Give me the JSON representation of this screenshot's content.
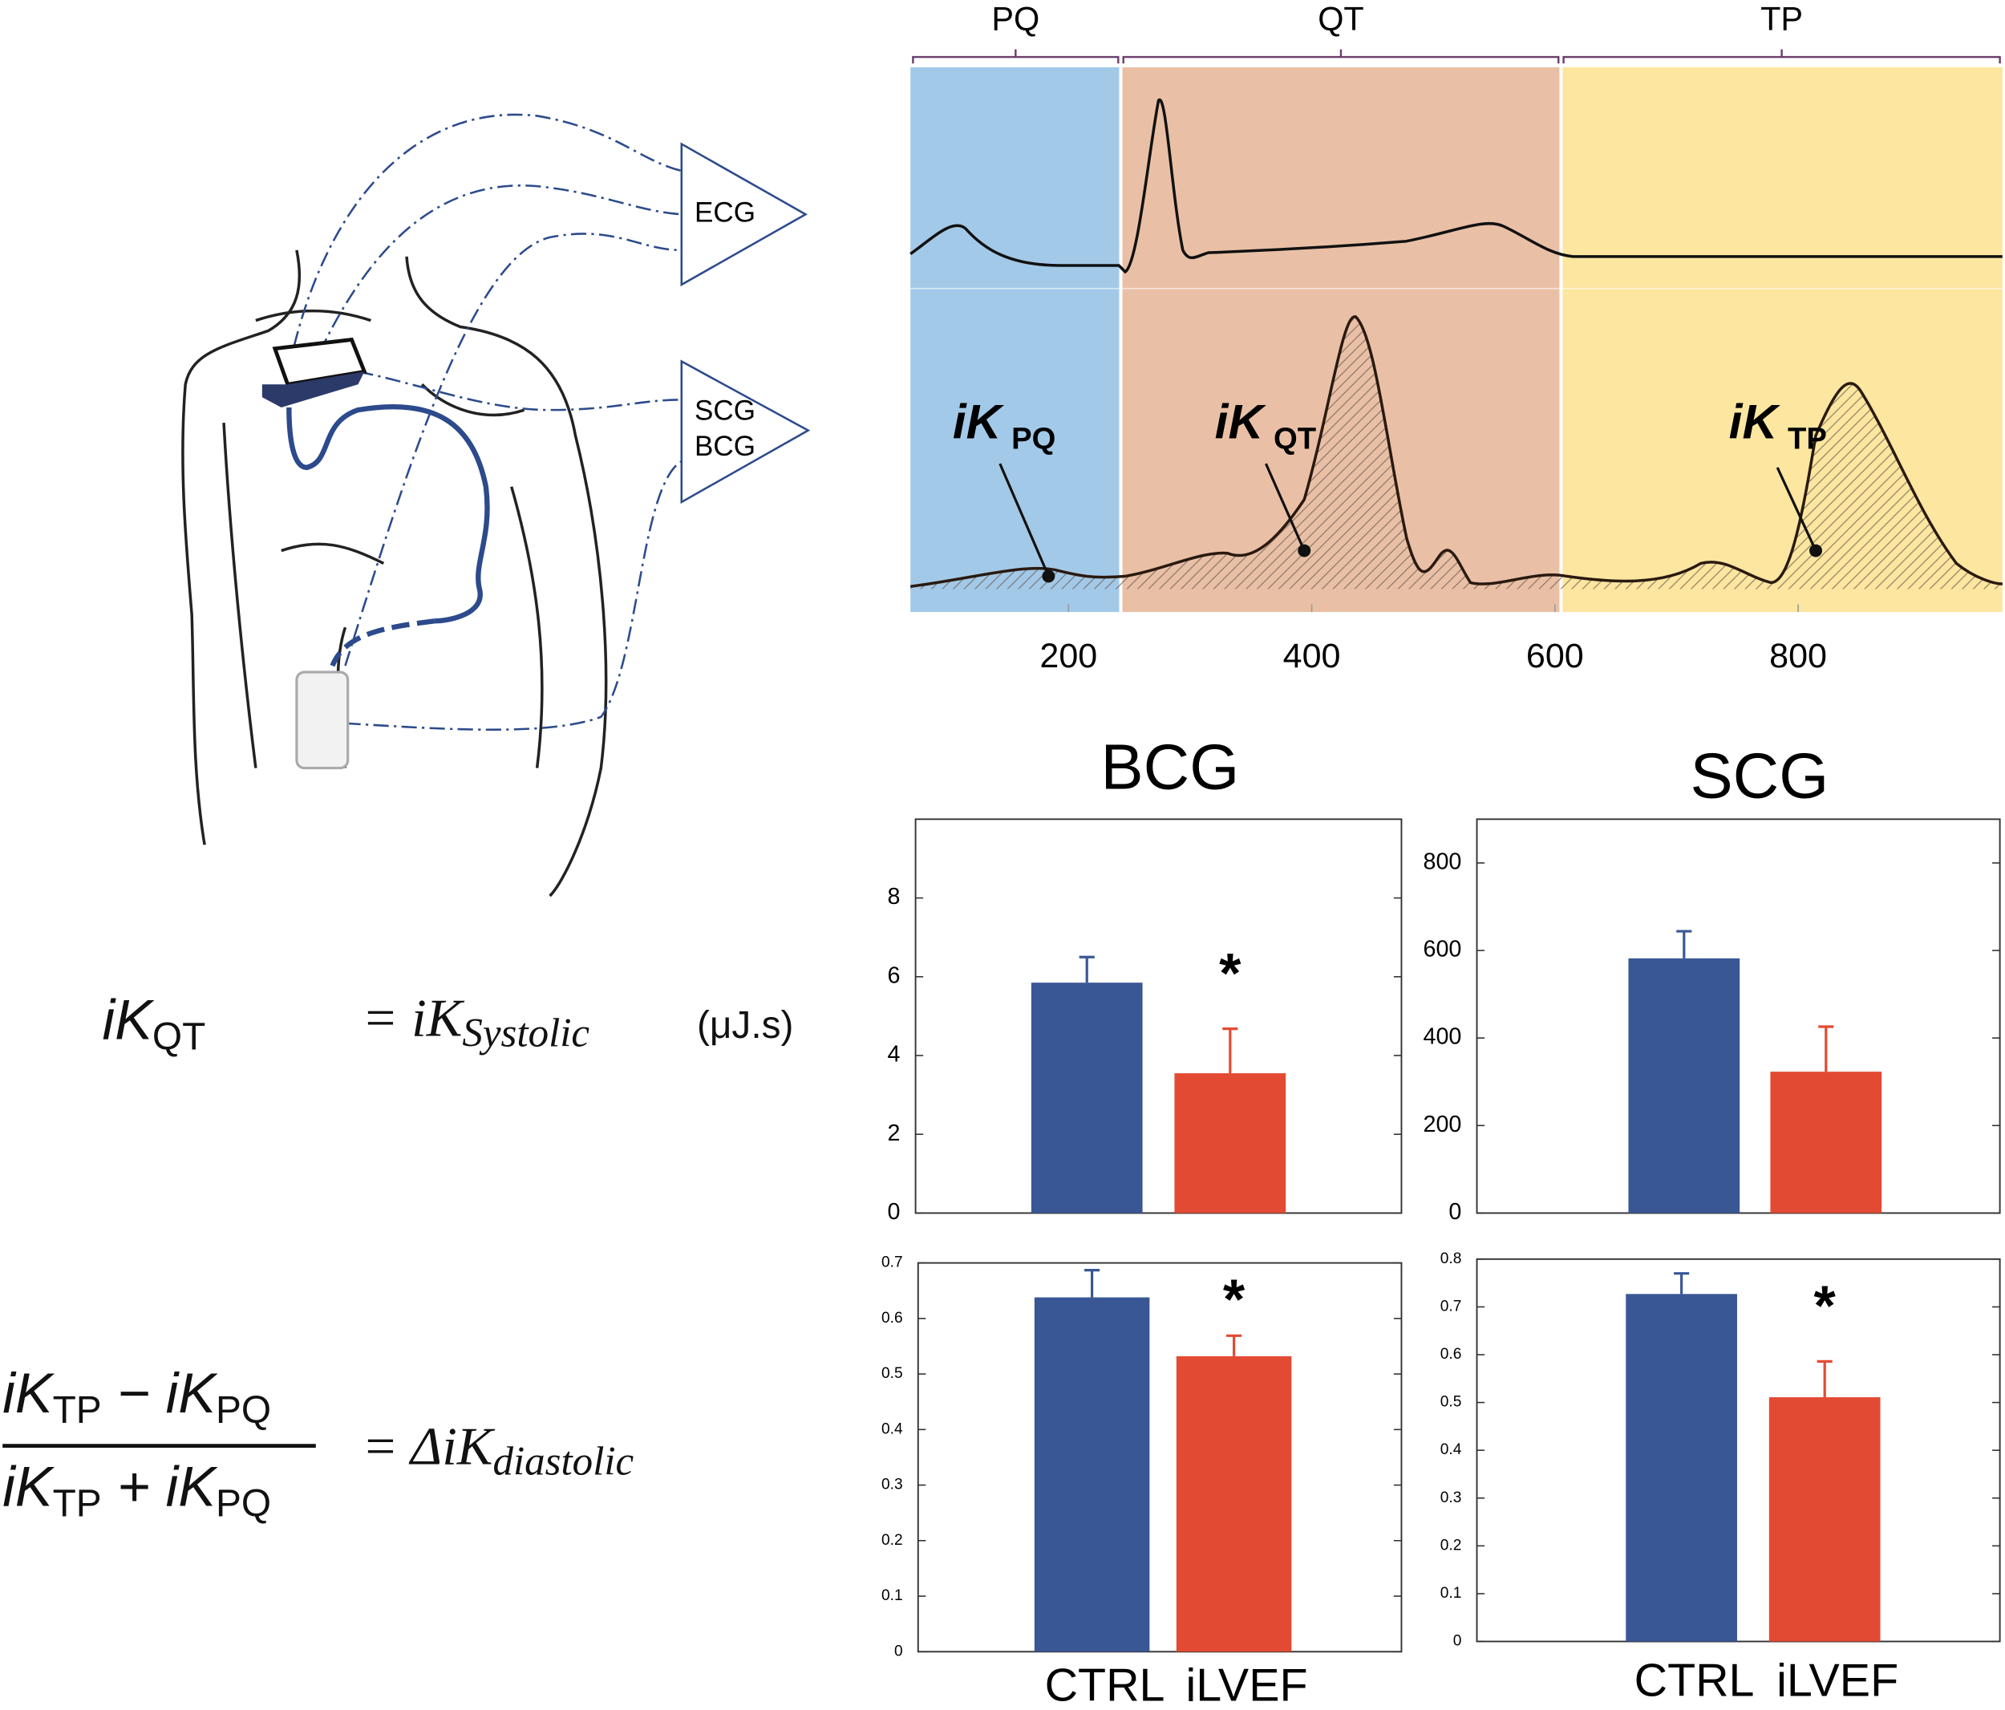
{
  "chart_data": [
    {
      "type": "line",
      "xlim": [
        70,
        968
      ],
      "xticks": [
        200,
        400,
        600,
        800
      ],
      "segments": [
        {
          "label": "PQ",
          "start": 70,
          "end": 243,
          "color": "#a3c9e8"
        },
        {
          "label": "QT",
          "start": 243,
          "end": 605,
          "color": "#e9c0a6"
        },
        {
          "label": "TP",
          "start": 605,
          "end": 968,
          "color": "#fce6a0"
        }
      ],
      "annotations": [
        {
          "text": "iK",
          "sub": "PQ"
        },
        {
          "text": "iK",
          "sub": "QT"
        },
        {
          "text": "iK",
          "sub": "TP"
        }
      ]
    },
    {
      "type": "bar",
      "title": "BCG",
      "categories": [
        "CTRL",
        "iLVEF"
      ],
      "values": [
        5.85,
        3.55
      ],
      "errors": [
        0.65,
        1.13
      ],
      "colors": [
        "#3a5795",
        "#e34a33"
      ],
      "ylim": [
        0,
        10
      ],
      "yticks": [
        0,
        2,
        4,
        6,
        8
      ],
      "annotations": [
        {
          "text": "*",
          "category": "iLVEF"
        }
      ]
    },
    {
      "type": "bar",
      "title": "SCG",
      "categories": [
        "CTRL",
        "iLVEF"
      ],
      "values": [
        582,
        323
      ],
      "errors": [
        62,
        103
      ],
      "colors": [
        "#3a5795",
        "#e34a33"
      ],
      "ylim": [
        0,
        900
      ],
      "yticks": [
        0,
        200,
        400,
        600,
        800
      ]
    },
    {
      "type": "bar",
      "categories": [
        "CTRL",
        "iLVEF"
      ],
      "values": [
        0.638,
        0.532
      ],
      "errors": [
        0.049,
        0.037
      ],
      "colors": [
        "#3a5795",
        "#e34a33"
      ],
      "ylim": [
        0,
        0.7
      ],
      "yticks": [
        0,
        0.1,
        0.2,
        0.3,
        0.4,
        0.5,
        0.6,
        0.7
      ],
      "annotations": [
        {
          "text": "*",
          "category": "iLVEF"
        }
      ]
    },
    {
      "type": "bar",
      "categories": [
        "CTRL",
        "iLVEF"
      ],
      "values": [
        0.727,
        0.511
      ],
      "errors": [
        0.043,
        0.075
      ],
      "colors": [
        "#3a5795",
        "#e34a33"
      ],
      "ylim": [
        0,
        0.8
      ],
      "yticks": [
        0,
        0.1,
        0.2,
        0.3,
        0.4,
        0.5,
        0.6,
        0.7,
        0.8
      ],
      "annotations": [
        {
          "text": "*",
          "category": "iLVEF"
        }
      ]
    }
  ],
  "diagram": {
    "ecg": "ECG",
    "scg": "SCG",
    "bcg": "BCG"
  },
  "equations": {
    "systolic": {
      "symbol": "iK",
      "subscript": "QT",
      "equals": "= iK",
      "result_subscript": "Systolic",
      "unit": "(μJ.s)"
    },
    "diastolic": {
      "num_a": "iK",
      "num_a_sub": "TP",
      "num_op": " − iK",
      "num_b_sub": "PQ",
      "den_a": "iK",
      "den_a_sub": "TP",
      "den_op": " + iK",
      "den_b_sub": "PQ",
      "equals": "= ΔiK",
      "result_subscript": "diastolic"
    }
  }
}
